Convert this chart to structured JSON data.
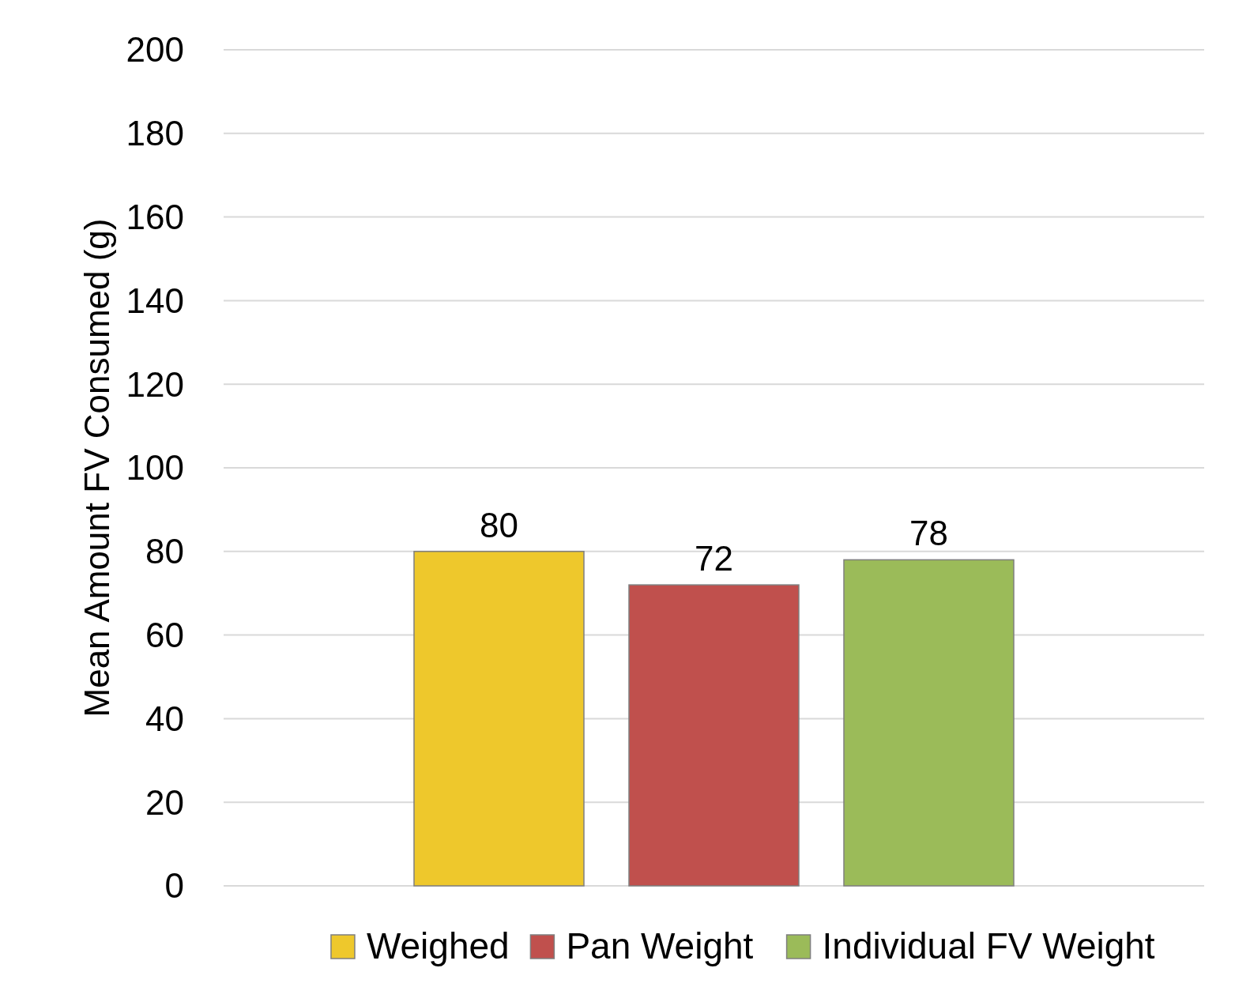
{
  "chart_data": {
    "type": "bar",
    "ylabel": "Mean Amount FV Consumed (g)",
    "categories": [
      null
    ],
    "series": [
      {
        "name": "Weighed",
        "color": "#eec82c",
        "values": [
          80
        ]
      },
      {
        "name": "Pan Weight",
        "color": "#c0504d",
        "values": [
          72
        ]
      },
      {
        "name": "Individual FV Weight",
        "color": "#9bbb59",
        "values": [
          78
        ]
      }
    ],
    "ylim": [
      0,
      200
    ],
    "yticks": [
      0,
      20,
      40,
      60,
      80,
      100,
      120,
      140,
      160,
      180,
      200
    ],
    "grid": "y",
    "legend": "bottom",
    "data_labels": true
  }
}
